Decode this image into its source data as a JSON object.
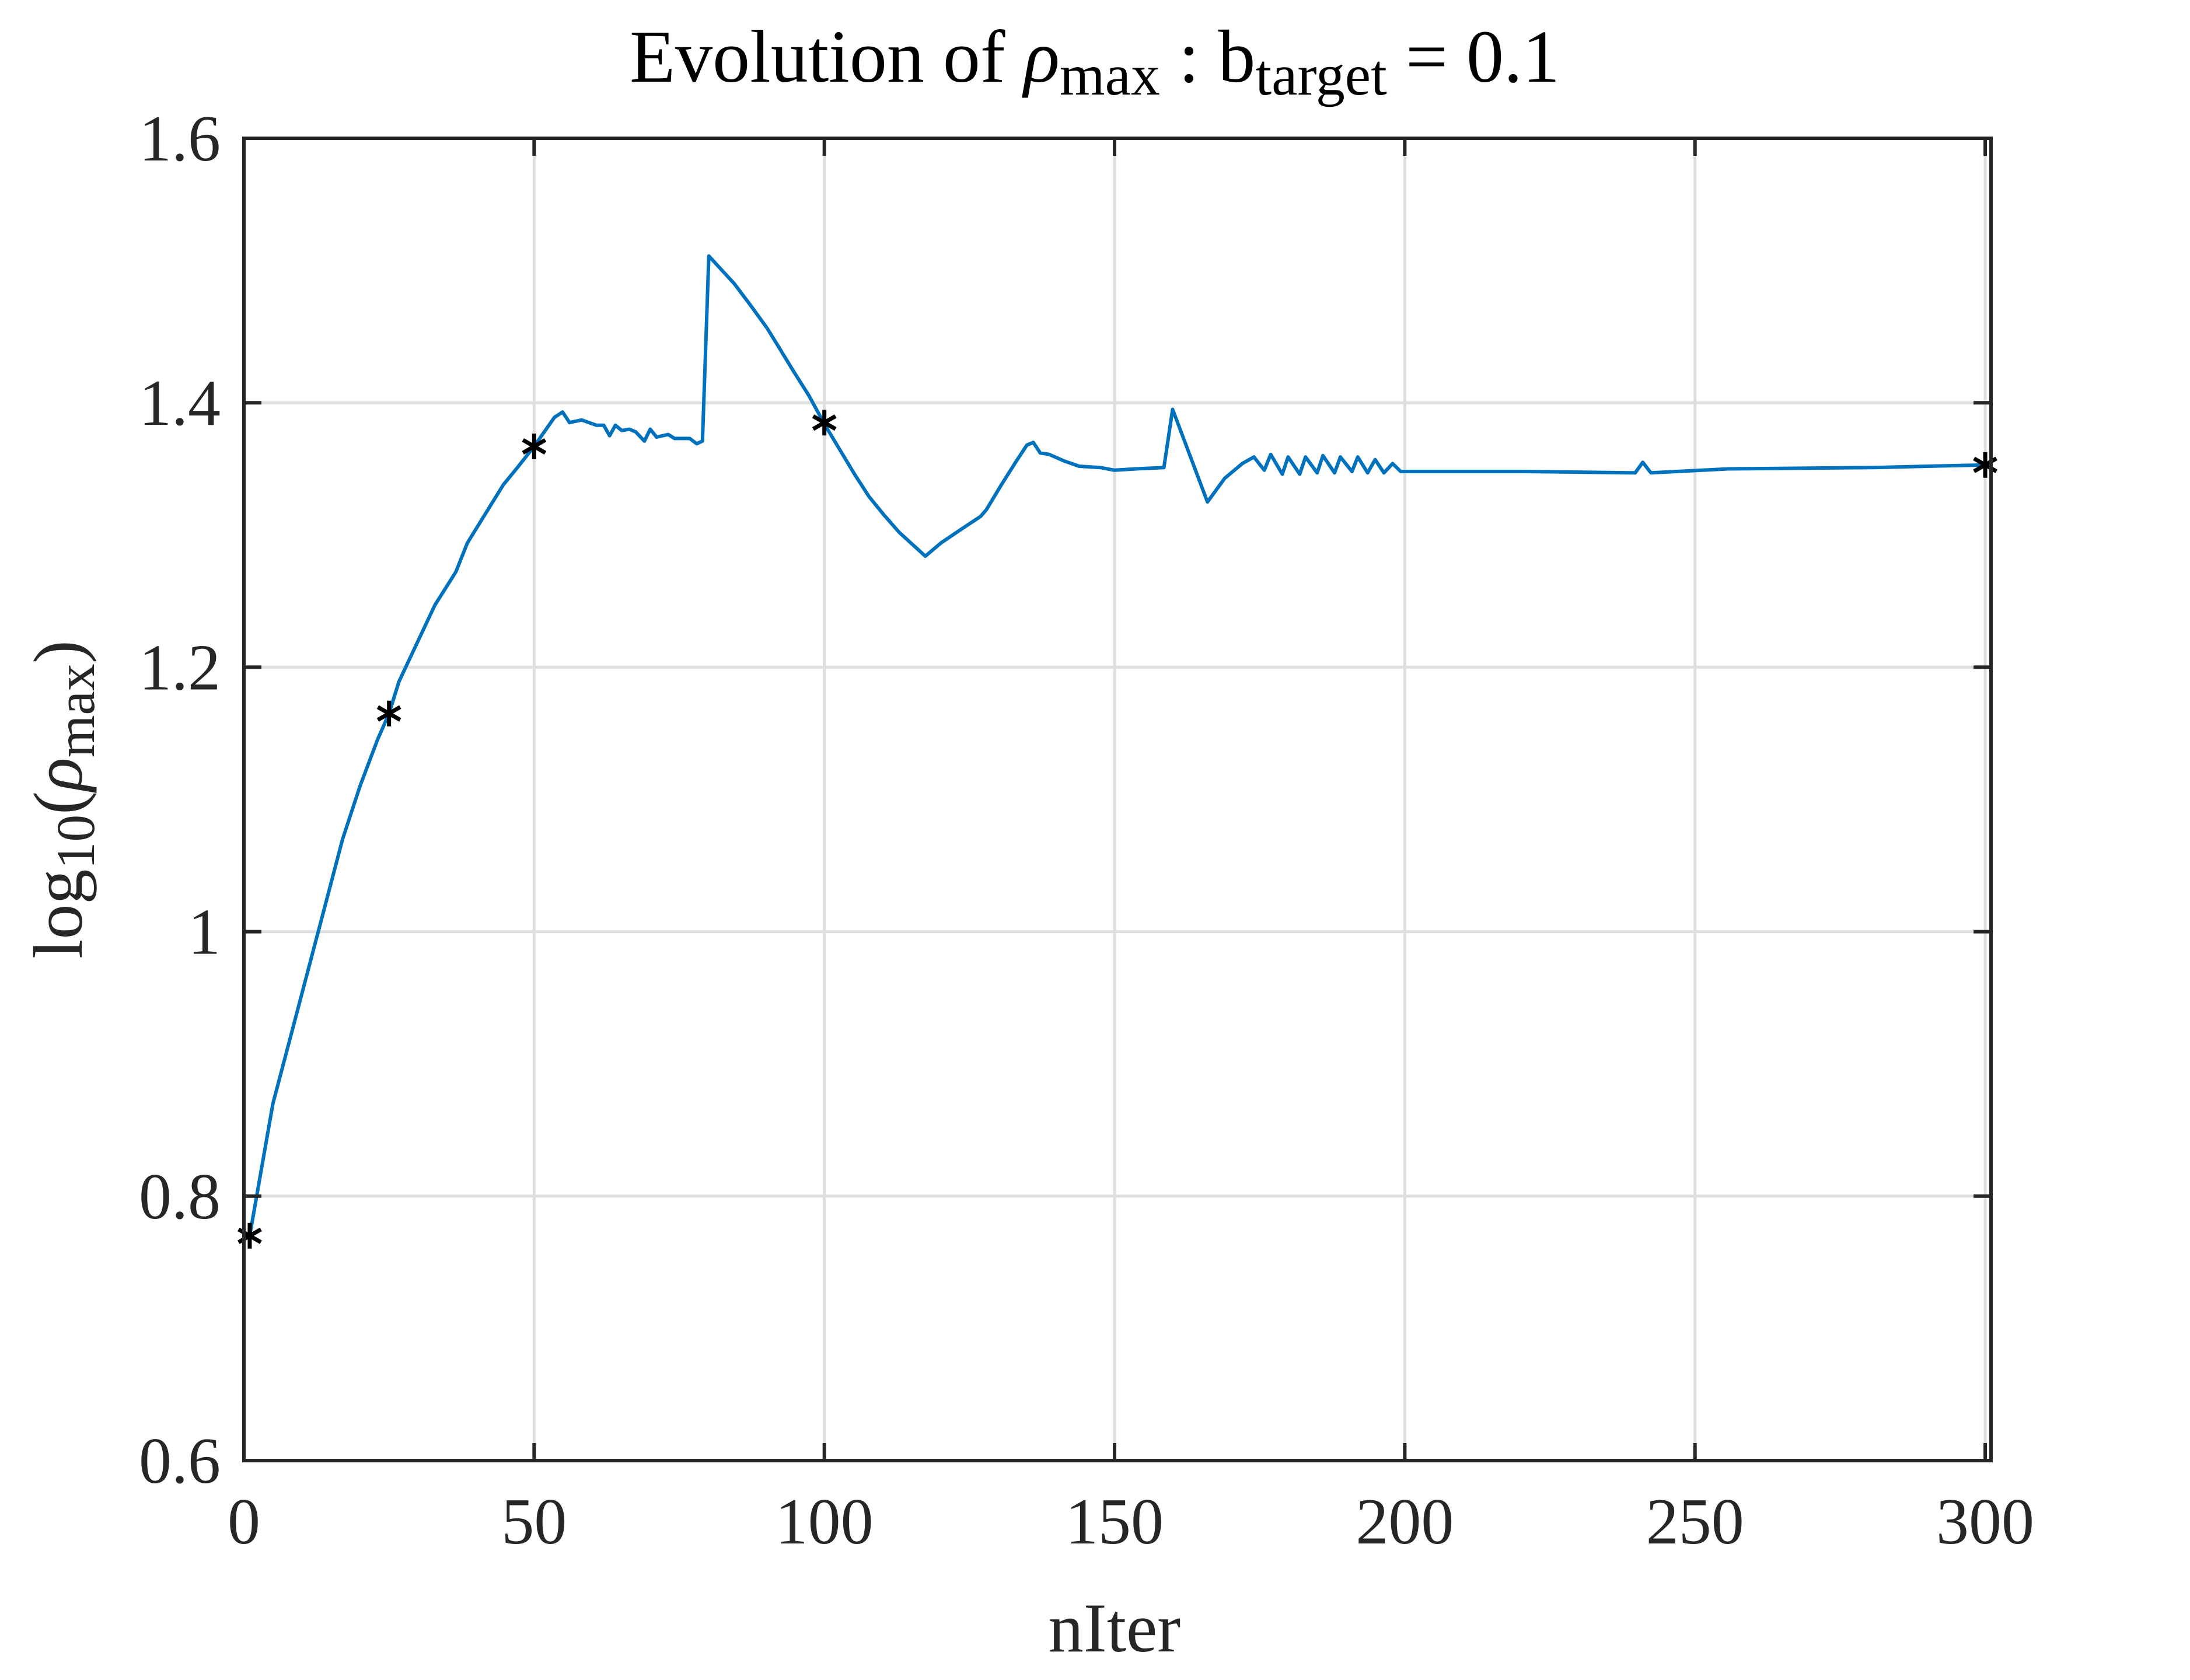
{
  "chart_data": {
    "type": "line",
    "title_segments": [
      {
        "text": "Evolution of ",
        "style": "normal"
      },
      {
        "text": "ρ",
        "style": "italic"
      },
      {
        "text": "max",
        "style": "sub"
      },
      {
        "text": " : b",
        "style": "normal"
      },
      {
        "text": "target",
        "style": "sub"
      },
      {
        "text": " = 0.1",
        "style": "normal"
      }
    ],
    "xlabel": "nIter",
    "ylabel_segments": [
      {
        "text": "log",
        "style": "normal"
      },
      {
        "text": "10",
        "style": "sub"
      },
      {
        "text": "(",
        "style": "normal"
      },
      {
        "text": "ρ",
        "style": "italic"
      },
      {
        "text": "max",
        "style": "sub"
      },
      {
        "text": ")",
        "style": "normal"
      }
    ],
    "xlim": [
      0,
      301
    ],
    "ylim": [
      0.6,
      1.6
    ],
    "xticks": [
      0,
      50,
      100,
      150,
      200,
      250,
      300
    ],
    "xtick_labels": [
      "0",
      "50",
      "100",
      "150",
      "200",
      "250",
      "300"
    ],
    "yticks": [
      0.6,
      0.8,
      1.0,
      1.2,
      1.4,
      1.6
    ],
    "ytick_labels": [
      "0.6",
      "0.8",
      "1",
      "1.2",
      "1.4",
      "1.6"
    ],
    "grid": true,
    "colors": {
      "line": "#0072BD",
      "markers": "#000000",
      "grid": "#DFDFDF",
      "axes": "#262626"
    },
    "series": [
      {
        "x": [
          1,
          3,
          5,
          8,
          11,
          14,
          17,
          20,
          23,
          25,
          26.7,
          29.8,
          32.9,
          36.5,
          38.5,
          41.6,
          44.7,
          47.3,
          50,
          53.5,
          54.9,
          56.1,
          58.2,
          60.7,
          62,
          63,
          64,
          65.1,
          66.4,
          67.5,
          69,
          70,
          71.1,
          73.1,
          74.2,
          76.8,
          78,
          79,
          80.1,
          82.4,
          84.5,
          87.4,
          90.2,
          92.3,
          94.8,
          97.4,
          100,
          102.6,
          105.2,
          107.7,
          110.3,
          112.9,
          117.4,
          120.1,
          123.8,
          126.9,
          127.9,
          130.5,
          133.1,
          134.9,
          136,
          137.2,
          138.7,
          141.3,
          143.9,
          147.5,
          150,
          153.7,
          158.5,
          160,
          166,
          169,
          172,
          174,
          175.8,
          176.9,
          178.9,
          179.9,
          181.9,
          182.9,
          184.9,
          185.9,
          187.9,
          188.9,
          190.9,
          191.9,
          193.6,
          194.9,
          196.4,
          197.9,
          199.3,
          220.6,
          239.7,
          241,
          242.4,
          255.7,
          280.8,
          300
        ],
        "y": [
          0.77,
          0.82,
          0.87,
          0.92,
          0.97,
          1.02,
          1.07,
          1.11,
          1.145,
          1.165,
          1.189,
          1.218,
          1.247,
          1.272,
          1.294,
          1.316,
          1.338,
          1.352,
          1.367,
          1.389,
          1.393,
          1.385,
          1.387,
          1.383,
          1.383,
          1.375,
          1.383,
          1.379,
          1.38,
          1.378,
          1.371,
          1.38,
          1.374,
          1.376,
          1.373,
          1.373,
          1.369,
          1.371,
          1.511,
          1.5,
          1.49,
          1.473,
          1.456,
          1.441,
          1.423,
          1.405,
          1.384,
          1.365,
          1.346,
          1.329,
          1.315,
          1.302,
          1.284,
          1.294,
          1.305,
          1.314,
          1.319,
          1.338,
          1.356,
          1.368,
          1.37,
          1.362,
          1.361,
          1.356,
          1.352,
          1.351,
          1.349,
          1.35,
          1.351,
          1.395,
          1.325,
          1.343,
          1.354,
          1.359,
          1.349,
          1.361,
          1.346,
          1.359,
          1.346,
          1.359,
          1.347,
          1.36,
          1.347,
          1.359,
          1.348,
          1.359,
          1.347,
          1.357,
          1.347,
          1.354,
          1.348,
          1.348,
          1.347,
          1.355,
          1.347,
          1.35,
          1.351,
          1.353
        ]
      },
      {
        "marker": "asterisk",
        "x": [
          1,
          25,
          50,
          100,
          300
        ],
        "y": [
          0.77,
          1.165,
          1.367,
          1.385,
          1.353
        ]
      }
    ]
  }
}
